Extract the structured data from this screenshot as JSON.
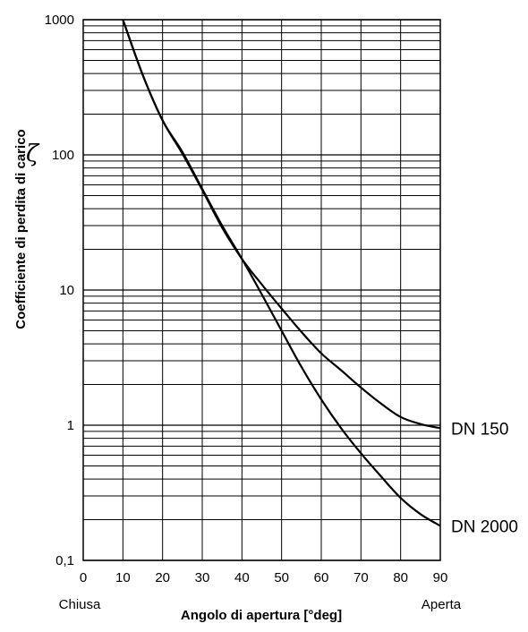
{
  "chart_data": {
    "type": "line",
    "xlabel": "Angolo di apertura  [°deg]",
    "ylabel": "Coefficiente di perdita di carico",
    "ylabel_symbol": "ζ",
    "x_end_labels": {
      "left": "Chiusa",
      "right": "Aperta"
    },
    "xlim": [
      0,
      90
    ],
    "ylim": [
      0.1,
      1000
    ],
    "y_scale": "log",
    "grid": true,
    "x_ticks": [
      0,
      10,
      20,
      30,
      40,
      50,
      60,
      70,
      80,
      90
    ],
    "y_ticks": [
      {
        "value": 0.1,
        "label": "0,1"
      },
      {
        "value": 1,
        "label": "1"
      },
      {
        "value": 10,
        "label": "10"
      },
      {
        "value": 100,
        "label": "100"
      },
      {
        "value": 1000,
        "label": "1000"
      }
    ],
    "series": [
      {
        "name": "DN 150",
        "x": [
          10,
          15,
          20,
          25,
          30,
          35,
          40,
          45,
          50,
          55,
          60,
          65,
          70,
          75,
          80,
          85,
          90
        ],
        "values": [
          1000,
          390,
          180,
          102,
          55,
          29,
          17,
          11,
          7.3,
          4.9,
          3.4,
          2.55,
          1.9,
          1.45,
          1.15,
          1.02,
          0.95
        ]
      },
      {
        "name": "DN 2000",
        "x": [
          10,
          15,
          20,
          25,
          30,
          35,
          40,
          45,
          50,
          55,
          60,
          65,
          70,
          75,
          80,
          85,
          90
        ],
        "values": [
          1000,
          390,
          180,
          105,
          56,
          30,
          17,
          9.3,
          5,
          2.7,
          1.55,
          0.95,
          0.62,
          0.42,
          0.29,
          0.22,
          0.18
        ]
      }
    ]
  }
}
